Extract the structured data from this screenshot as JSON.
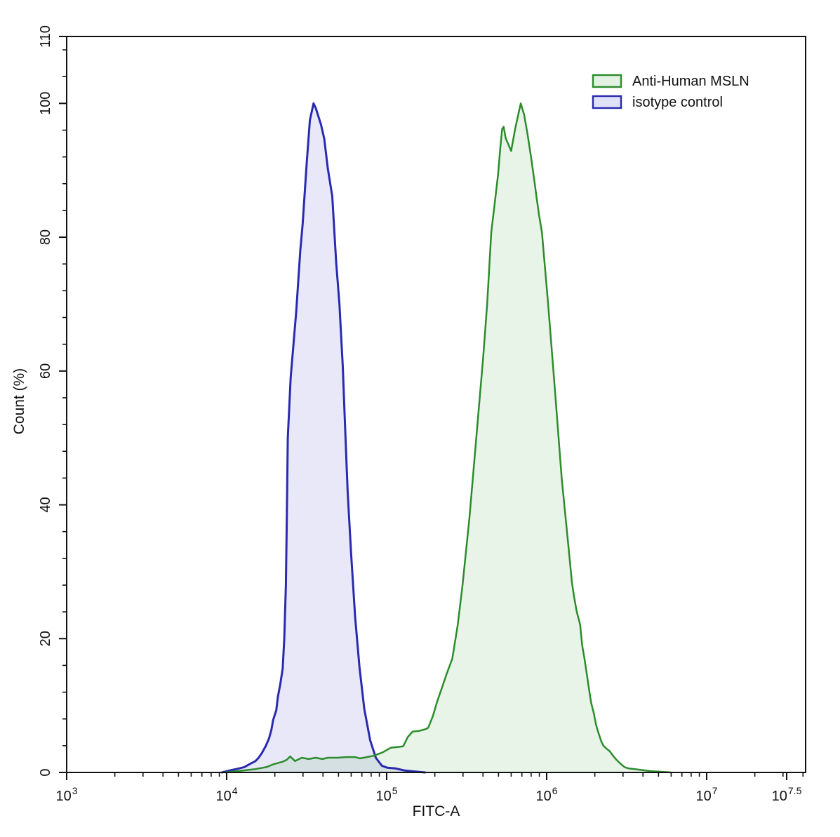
{
  "figure": {
    "xlabel": "FITC-A",
    "ylabel": "Count  (%)"
  },
  "chart_data": {
    "type": "area",
    "title": "",
    "xlabel": "FITC-A",
    "ylabel": "Count  (%)",
    "x_scale": "log10",
    "x_domain_log": [
      3.0,
      7.63
    ],
    "x_major_ticks": [
      {
        "log": 3.0,
        "base": "10",
        "exp": "3"
      },
      {
        "log": 4.0,
        "base": "10",
        "exp": "4"
      },
      {
        "log": 5.0,
        "base": "10",
        "exp": "5"
      },
      {
        "log": 6.0,
        "base": "10",
        "exp": "6"
      },
      {
        "log": 7.0,
        "base": "10",
        "exp": "7"
      },
      {
        "log": 7.5,
        "base": "10",
        "exp": "7.5"
      }
    ],
    "y_domain": [
      0,
      110
    ],
    "y_major_ticks": [
      0,
      20,
      40,
      60,
      80,
      100,
      110
    ],
    "y_minor_step": 4,
    "grid": false,
    "legend_position": "top-right",
    "legend": [
      {
        "label": "Anti-Human MSLN",
        "stroke": "#2c8c2c",
        "fill": "#e2f1e2"
      },
      {
        "label": "isotype control",
        "stroke": "#2a2aae",
        "fill": "#dfe1f6"
      }
    ],
    "series": [
      {
        "name": "isotype control",
        "stroke": "#2a2aae",
        "fill": "rgba(95,95,215,0.14)",
        "stroke_width": 3,
        "points_logx_pct": [
          [
            3.97,
            0
          ],
          [
            4.02,
            0.3
          ],
          [
            4.06,
            0.5
          ],
          [
            4.11,
            0.8
          ],
          [
            4.14,
            1.2
          ],
          [
            4.18,
            1.7
          ],
          [
            4.2,
            2.2
          ],
          [
            4.22,
            2.9
          ],
          [
            4.245,
            4.0
          ],
          [
            4.265,
            5.1
          ],
          [
            4.28,
            6.4
          ],
          [
            4.29,
            7.8
          ],
          [
            4.31,
            9.3
          ],
          [
            4.32,
            11.3
          ],
          [
            4.335,
            13.2
          ],
          [
            4.35,
            15.5
          ],
          [
            4.36,
            20
          ],
          [
            4.37,
            28
          ],
          [
            4.376,
            38
          ],
          [
            4.382,
            50
          ],
          [
            4.4,
            59
          ],
          [
            4.435,
            69
          ],
          [
            4.46,
            78
          ],
          [
            4.475,
            82
          ],
          [
            4.5,
            91
          ],
          [
            4.52,
            97.5
          ],
          [
            4.543,
            100
          ],
          [
            4.557,
            99.3
          ],
          [
            4.59,
            96.8
          ],
          [
            4.61,
            94.7
          ],
          [
            4.632,
            90.3
          ],
          [
            4.66,
            86.1
          ],
          [
            4.684,
            76.3
          ],
          [
            4.705,
            70
          ],
          [
            4.726,
            60.6
          ],
          [
            4.74,
            51.8
          ],
          [
            4.756,
            42
          ],
          [
            4.778,
            32.6
          ],
          [
            4.803,
            23.2
          ],
          [
            4.83,
            15.8
          ],
          [
            4.86,
            9.5
          ],
          [
            4.897,
            4.8
          ],
          [
            4.932,
            2.2
          ],
          [
            4.97,
            1.0
          ],
          [
            5.005,
            0.7
          ],
          [
            5.056,
            0.6
          ],
          [
            5.11,
            0.3
          ],
          [
            5.175,
            0.15
          ],
          [
            5.24,
            0
          ]
        ]
      },
      {
        "name": "Anti-Human MSLN",
        "stroke": "#2c8c2c",
        "fill": "rgba(100,175,100,0.14)",
        "stroke_width": 2.5,
        "points_logx_pct": [
          [
            3.99,
            0
          ],
          [
            4.107,
            0.3
          ],
          [
            4.18,
            0.5
          ],
          [
            4.248,
            0.8
          ],
          [
            4.29,
            1.2
          ],
          [
            4.32,
            1.4
          ],
          [
            4.35,
            1.6
          ],
          [
            4.376,
            1.9
          ],
          [
            4.397,
            2.4
          ],
          [
            4.427,
            1.7
          ],
          [
            4.47,
            2.2
          ],
          [
            4.513,
            2.0
          ],
          [
            4.556,
            2.2
          ],
          [
            4.598,
            2.0
          ],
          [
            4.632,
            2.2
          ],
          [
            4.692,
            2.2
          ],
          [
            4.748,
            2.3
          ],
          [
            4.803,
            2.3
          ],
          [
            4.833,
            2.1
          ],
          [
            4.876,
            2.3
          ],
          [
            4.919,
            2.5
          ],
          [
            4.974,
            3.0
          ],
          [
            5.026,
            3.7
          ],
          [
            5.068,
            3.8
          ],
          [
            5.103,
            3.9
          ],
          [
            5.132,
            5.3
          ],
          [
            5.162,
            6.1
          ],
          [
            5.2,
            6.2
          ],
          [
            5.248,
            6.5
          ],
          [
            5.26,
            6.7
          ],
          [
            5.29,
            8.5
          ],
          [
            5.316,
            10.6
          ],
          [
            5.346,
            12.7
          ],
          [
            5.376,
            14.8
          ],
          [
            5.41,
            17
          ],
          [
            5.444,
            22
          ],
          [
            5.474,
            28
          ],
          [
            5.517,
            38
          ],
          [
            5.56,
            50
          ],
          [
            5.603,
            62
          ],
          [
            5.628,
            70
          ],
          [
            5.654,
            80.8
          ],
          [
            5.675,
            85
          ],
          [
            5.697,
            89.5
          ],
          [
            5.709,
            93.1
          ],
          [
            5.722,
            96.2
          ],
          [
            5.731,
            96.5
          ],
          [
            5.744,
            94.8
          ],
          [
            5.778,
            92.9
          ],
          [
            5.803,
            96.2
          ],
          [
            5.825,
            98.6
          ],
          [
            5.838,
            100
          ],
          [
            5.859,
            98.3
          ],
          [
            5.88,
            95.5
          ],
          [
            5.902,
            92.0
          ],
          [
            5.923,
            88.5
          ],
          [
            5.936,
            86.1
          ],
          [
            5.953,
            83.2
          ],
          [
            5.97,
            80.8
          ],
          [
            6.009,
            70
          ],
          [
            6.052,
            57
          ],
          [
            6.094,
            44
          ],
          [
            6.137,
            33.6
          ],
          [
            6.158,
            28.4
          ],
          [
            6.171,
            26.3
          ],
          [
            6.188,
            24.0
          ],
          [
            6.209,
            22.1
          ],
          [
            6.222,
            19.0
          ],
          [
            6.235,
            17.2
          ],
          [
            6.252,
            14.5
          ],
          [
            6.265,
            12.4
          ],
          [
            6.278,
            10.4
          ],
          [
            6.295,
            8.8
          ],
          [
            6.308,
            7.2
          ],
          [
            6.321,
            6.1
          ],
          [
            6.342,
            4.6
          ],
          [
            6.355,
            4.0
          ],
          [
            6.372,
            3.6
          ],
          [
            6.393,
            3.2
          ],
          [
            6.415,
            2.5
          ],
          [
            6.436,
            1.9
          ],
          [
            6.457,
            1.4
          ],
          [
            6.487,
            0.8
          ],
          [
            6.513,
            0.6
          ],
          [
            6.551,
            0.5
          ],
          [
            6.585,
            0.4
          ],
          [
            6.615,
            0.3
          ],
          [
            6.65,
            0.2
          ],
          [
            6.714,
            0.1
          ],
          [
            6.778,
            0
          ]
        ]
      }
    ]
  }
}
